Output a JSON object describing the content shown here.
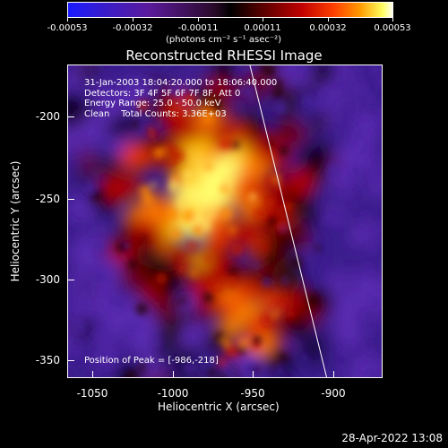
{
  "colorbar": {
    "ticks": [
      "-0.00053",
      "-0.00032",
      "-0.00011",
      "0.00011",
      "0.00032",
      "0.00053"
    ],
    "unit": "(photons cm⁻² s⁻¹ asec⁻²)"
  },
  "title": "Reconstructed RHESSI Image",
  "info": {
    "line1": "31-Jan-2003 18:04:20.000 to 18:06:40.000",
    "line2": "Detectors: 3F 4F 5F 6F 7F 8F, Att 0",
    "line3": "Energy Range: 25.0 - 50.0 keV",
    "line4": "Clean    Total Counts: 3.36E+03"
  },
  "peak": "Position of Peak = [-986,-218]",
  "axes": {
    "xlabel": "Heliocentric X (arcsec)",
    "ylabel": "Heliocentric Y (arcsec)",
    "xticks": [
      "-1050",
      "-1000",
      "-950",
      "-900"
    ],
    "yticks": [
      "-200",
      "-250",
      "-300",
      "-350"
    ]
  },
  "timestamp": "28-Apr-2022 13:08"
}
